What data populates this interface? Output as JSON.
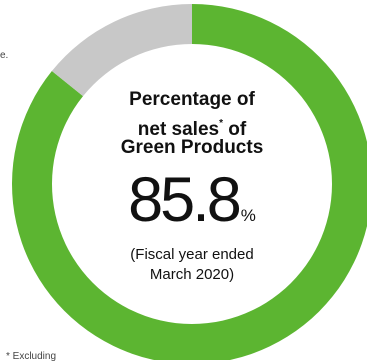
{
  "chart_data": {
    "type": "pie",
    "title_lines": [
      "Percentage of",
      "net sales",
      "of",
      "Green Products"
    ],
    "title_marker": "*",
    "value": "85.8",
    "unit": "%",
    "period_lines": [
      "(Fiscal year ended",
      "March 2020)"
    ],
    "slices": [
      {
        "value": 85.8,
        "color": "#5cb531"
      },
      {
        "value": 14.2,
        "color": "#c8c8c8"
      }
    ]
  },
  "edge_texts": {
    "left_fragment": "e.",
    "footnote_fragment": "* Excluding"
  }
}
